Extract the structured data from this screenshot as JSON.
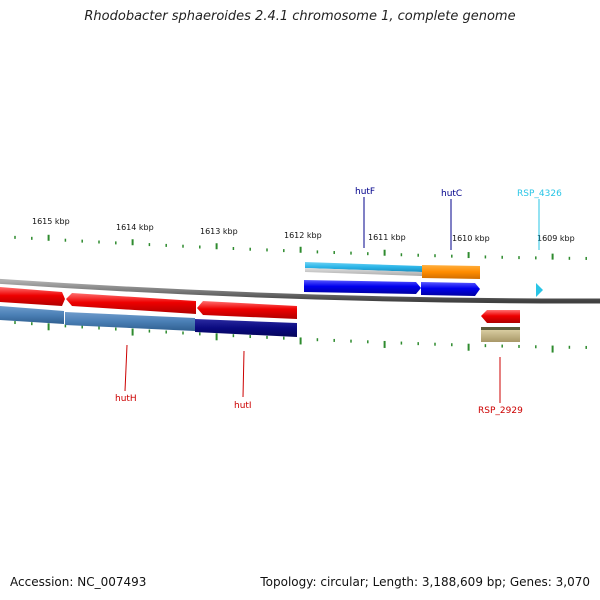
{
  "title": "Rhodobacter sphaeroides 2.4.1 chromosome 1, complete genome",
  "footer": {
    "accession": "Accession: NC_007493",
    "stats": "Topology: circular; Length: 3,188,609 bp; Genes: 3,070"
  },
  "scale_labels": [
    "1615 kbp",
    "1614 kbp",
    "1613 kbp",
    "1612 kbp",
    "1611 kbp",
    "1610 kbp",
    "1609 kbp"
  ],
  "genes_top": [
    {
      "name": "hutF",
      "color": "#00008b"
    },
    {
      "name": "hutC",
      "color": "#00008b"
    },
    {
      "name": "RSP_4326",
      "color": "#29c5e6"
    }
  ],
  "genes_bottom": [
    {
      "name": "hutH",
      "color": "#cc0000"
    },
    {
      "name": "hutI",
      "color": "#cc0000"
    },
    {
      "name": "RSP_2929",
      "color": "#cc0000"
    }
  ],
  "colors": {
    "tick": "#2e8b2e",
    "backbone": "#808080",
    "forward_cds": "#0000ee",
    "reverse_cds": "#ee0000",
    "feature_cyan": "#2bb5e8",
    "feature_orange": "#ff8c00",
    "feature_steel": "#4a7fb5",
    "feature_navy": "#0a0a80",
    "feature_khaki": "#b8a878"
  }
}
